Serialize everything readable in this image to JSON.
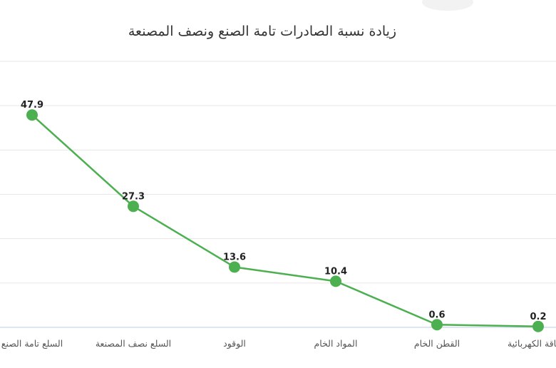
{
  "chart_data": {
    "type": "line",
    "title": "زيادة نسبة الصادرات تامة الصنع ونصف المصنعة",
    "categories": [
      "السلع تامة الصنع",
      "السلع نصف المصنعة",
      "الوقود",
      "المواد الخام",
      "القطن الخام",
      "الطاقة الكهربائية"
    ],
    "values": [
      47.9,
      27.3,
      13.6,
      10.4,
      0.6,
      0.2
    ],
    "ylim": [
      0,
      60
    ],
    "grid": true,
    "legend": "none",
    "colors": {
      "line": "#4caf50",
      "marker": "#4caf50"
    }
  }
}
